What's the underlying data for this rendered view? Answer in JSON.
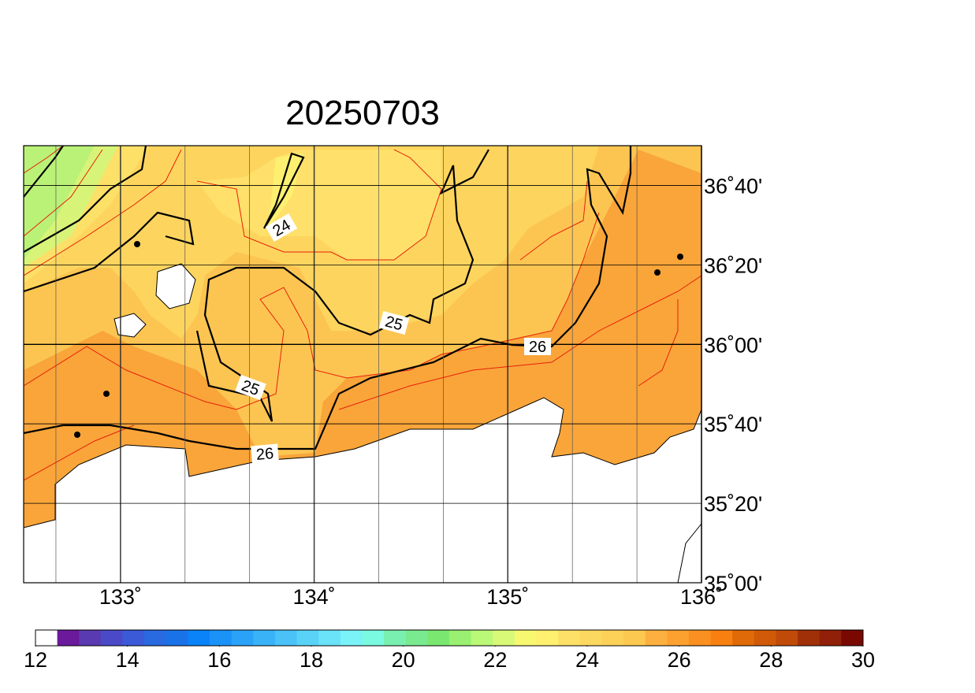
{
  "title": "20250703",
  "map": {
    "lonlim": [
      132.5,
      136
    ],
    "latlim": [
      35,
      36.8333
    ],
    "lon_ticks": [
      {
        "value": 133,
        "label": "133˚"
      },
      {
        "value": 134,
        "label": "134˚"
      },
      {
        "value": 135,
        "label": "135˚"
      },
      {
        "value": 136,
        "label": "136˚"
      }
    ],
    "lat_ticks": [
      {
        "value": 35,
        "label": "35˚00'"
      },
      {
        "value": 35.3333,
        "label": "35˚20'"
      },
      {
        "value": 35.6667,
        "label": "35˚40'"
      },
      {
        "value": 36,
        "label": "36˚00'"
      },
      {
        "value": 36.3333,
        "label": "36˚20'"
      },
      {
        "value": 36.6667,
        "label": "36˚40'"
      }
    ],
    "contour_labels": [
      24,
      25,
      25,
      26,
      26
    ]
  },
  "colorbar": {
    "range": [
      12,
      30
    ],
    "ticks": [
      12,
      14,
      16,
      18,
      20,
      22,
      24,
      26,
      28,
      30
    ],
    "colors": [
      "#ffffff",
      "#6a1a9a",
      "#5a3ab0",
      "#4a4ac8",
      "#3a5ad8",
      "#2a6ae0",
      "#1a72e8",
      "#0a82f8",
      "#1a92f8",
      "#2aa2f8",
      "#3ab2f8",
      "#4ac2f8",
      "#5ad2f8",
      "#6ae2f8",
      "#7af2f8",
      "#7afae0",
      "#7af0b0",
      "#7aea90",
      "#7ae870",
      "#9af070",
      "#baf878",
      "#d8f878",
      "#f8f870",
      "#fff070",
      "#fde068",
      "#fdd860",
      "#fdd058",
      "#fdc850",
      "#fcb040",
      "#fca030",
      "#fa9020",
      "#f88010",
      "#e06a08",
      "#d05a08",
      "#c04a08",
      "#a03008",
      "#902008",
      "#780800"
    ]
  }
}
